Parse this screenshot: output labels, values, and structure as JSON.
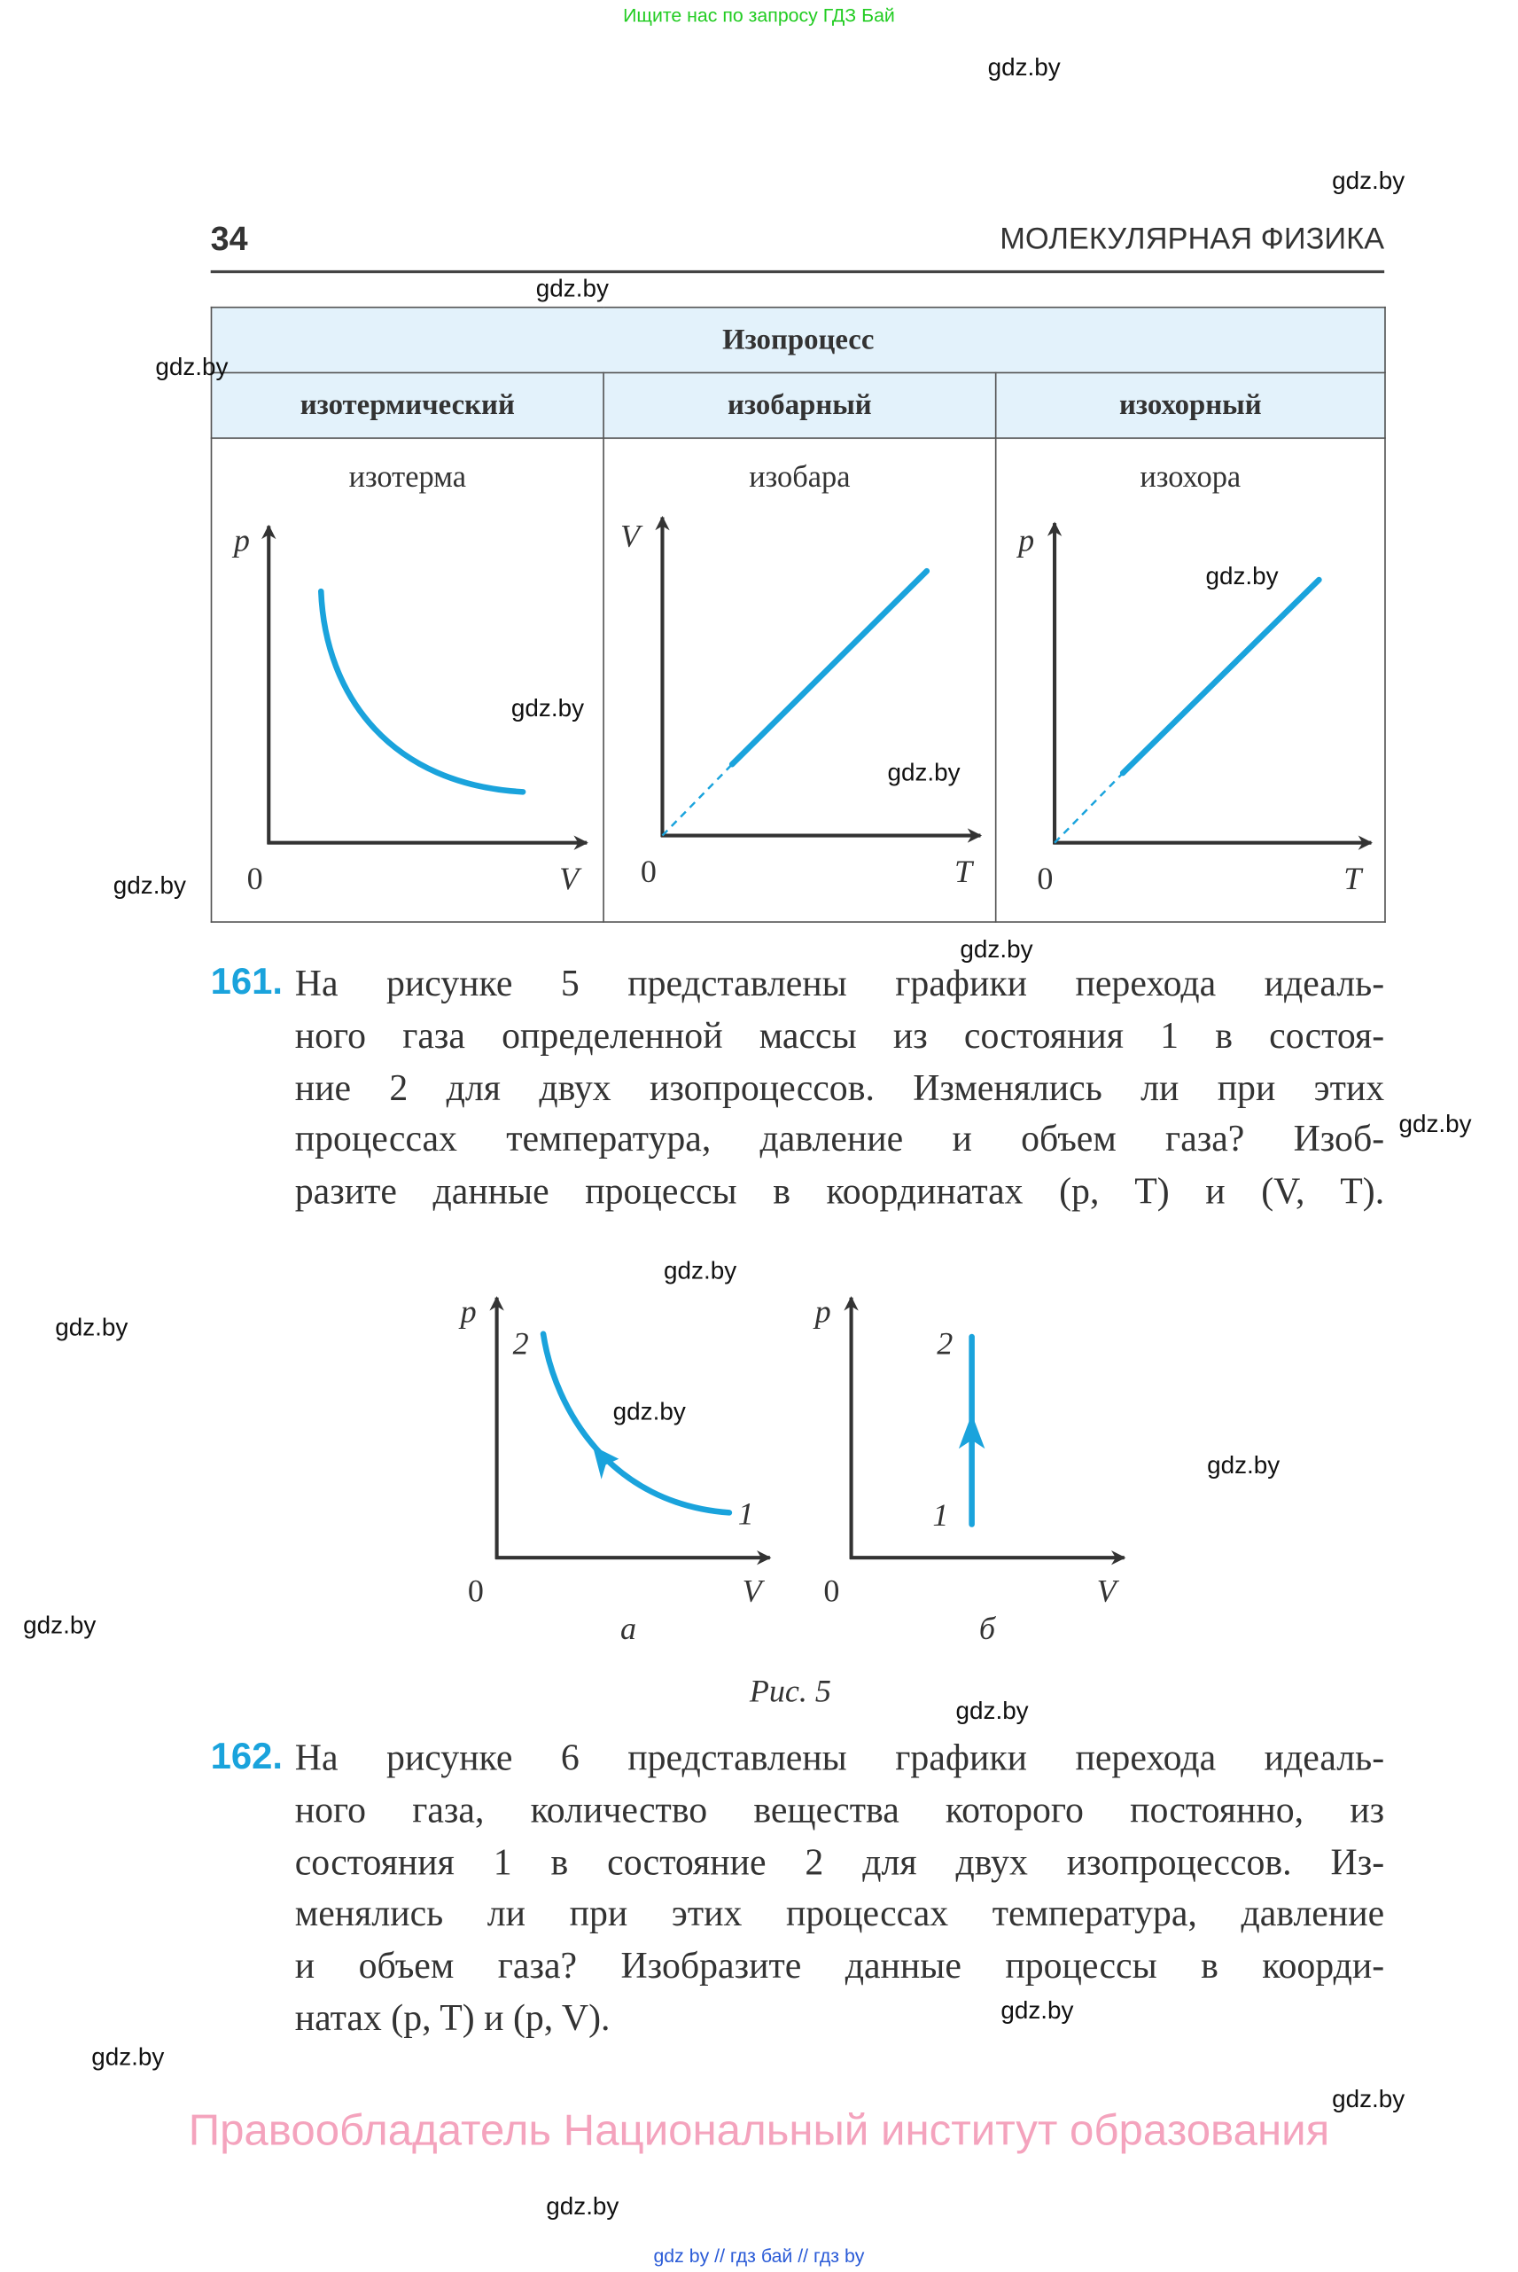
{
  "banner": "Ищите нас по запросу ГДЗ Бай",
  "header": {
    "page_number": "34",
    "chapter": "МОЛЕКУЛЯРНАЯ ФИЗИКА"
  },
  "table": {
    "title": "Изопроцесс",
    "columns": [
      {
        "name": "изотермический",
        "graph": "изотерма",
        "y_axis": "p",
        "x_axis": "V",
        "origin": "0"
      },
      {
        "name": "изобарный",
        "graph": "изобара",
        "y_axis": "V",
        "x_axis": "T",
        "origin": "0"
      },
      {
        "name": "изохорный",
        "graph": "изохора",
        "y_axis": "p",
        "x_axis": "T",
        "origin": "0"
      }
    ]
  },
  "task161": {
    "number": "161.",
    "lines": [
      "На рисунке 5 представлены графики перехода идеаль-",
      "ного газа определенной массы из состояния 1 в состоя-",
      "ние 2 для двух изопроцессов. Изменялись ли при этих",
      "процессах температура, давление и объем газа? Изоб-",
      "разите данные процессы в координатах (p, T) и (V, T)."
    ]
  },
  "figure5": {
    "caption": "Рис. 5",
    "panels": [
      {
        "label": "а",
        "y_axis": "p",
        "x_axis": "V",
        "origin": "0",
        "point_start": "1",
        "point_end": "2"
      },
      {
        "label": "б",
        "y_axis": "p",
        "x_axis": "V",
        "origin": "0",
        "point_start": "1",
        "point_end": "2"
      }
    ]
  },
  "task162": {
    "number": "162.",
    "lines": [
      "На рисунке 6 представлены графики перехода идеаль-",
      "ного газа, количество вещества которого постоянно, из",
      "состояния 1 в состояние 2 для двух изопроцессов. Из-",
      "менялись ли при этих процессах температура, давление",
      "и объем газа? Изобразите данные процессы в коорди-",
      "натах (p, T) и (p, V)."
    ]
  },
  "footer": "Правообладатель Национальный институт образования",
  "bottom_links": "gdz by  //  гдз бай  //  гдз by",
  "watermark": "gdz.by",
  "colors": {
    "accent": "#1aa3dc",
    "header_fill": "#e3f2fb",
    "footer": "#f4a3bd",
    "banner": "#22cc22"
  }
}
